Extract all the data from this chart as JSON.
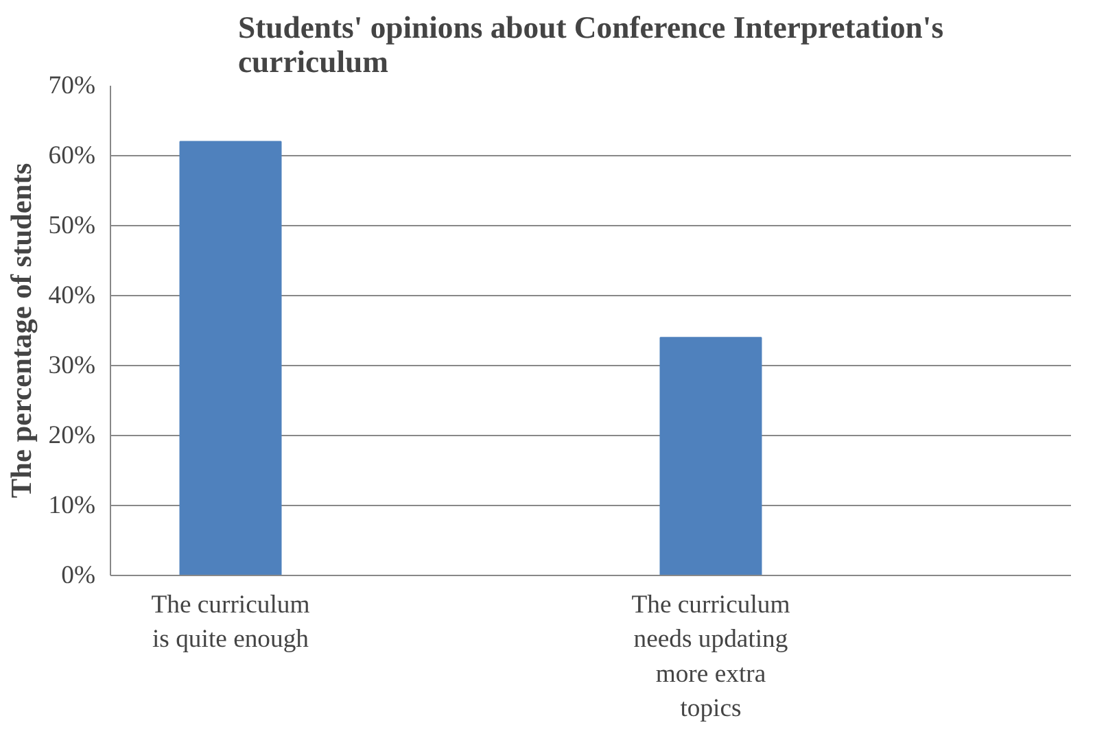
{
  "chart_data": {
    "type": "bar",
    "title": "Students' opinions about Conference Interpretation's curriculum",
    "ylabel": "The percentage of students",
    "categories": [
      "The curriculum is quite enough",
      "The curriculum needs updating more extra topics"
    ],
    "values": [
      62,
      34
    ],
    "color": "#4f81bd",
    "ylim": [
      0,
      70
    ],
    "yticks": [
      {
        "value": 0,
        "label": "0%"
      },
      {
        "value": 10,
        "label": "10%"
      },
      {
        "value": 20,
        "label": "20%"
      },
      {
        "value": 30,
        "label": "30%"
      },
      {
        "value": 40,
        "label": "40%"
      },
      {
        "value": 50,
        "label": "50%"
      },
      {
        "value": 60,
        "label": "60%"
      },
      {
        "value": 70,
        "label": "70%"
      }
    ],
    "grid": "y"
  }
}
